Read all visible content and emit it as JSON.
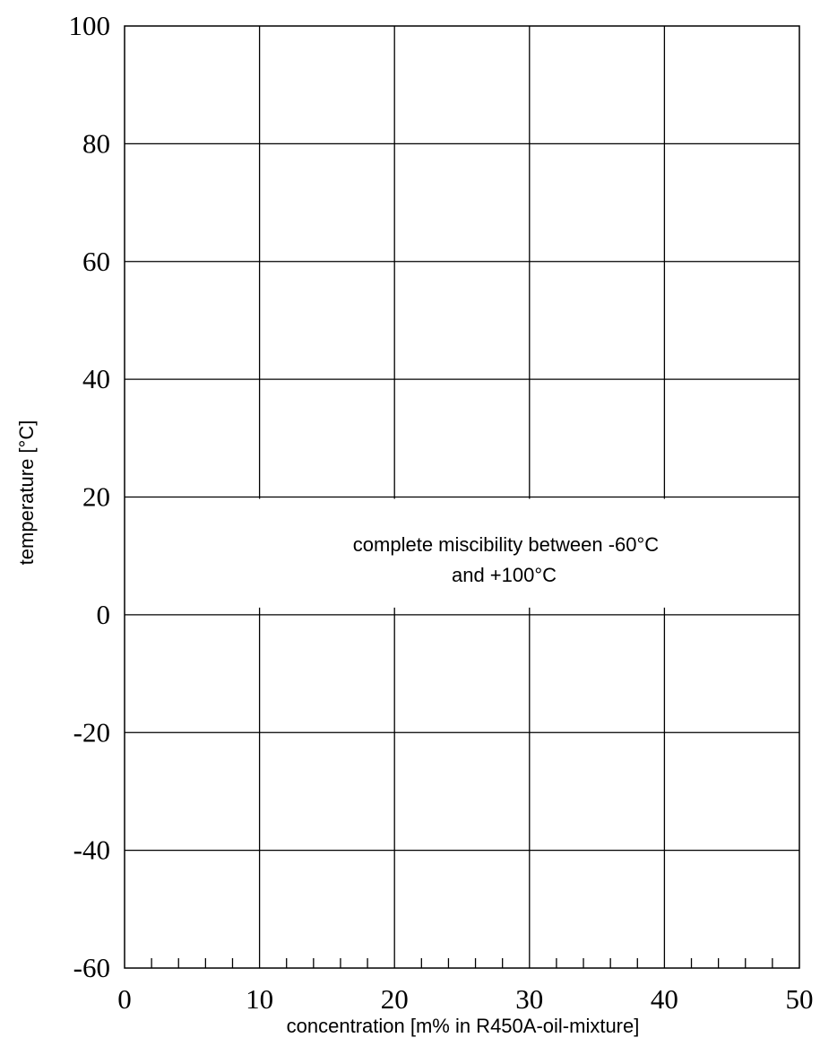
{
  "chart_data": {
    "type": "line",
    "title": "",
    "xlabel": "concentration [m% in R450A-oil-mixture]",
    "ylabel": "temperature [°C]",
    "xlim": [
      0,
      50
    ],
    "ylim": [
      -60,
      100
    ],
    "x_ticks": [
      0,
      10,
      20,
      30,
      40,
      50
    ],
    "y_ticks": [
      100,
      80,
      60,
      40,
      20,
      0,
      -20,
      -40,
      -60
    ],
    "x_minor_step": 2,
    "grid": true,
    "series": [],
    "annotation": {
      "lines": [
        "complete miscibility between -60°C",
        "and +100°C"
      ],
      "x": 25,
      "y": 10
    },
    "colors": {
      "line": "#000000",
      "background": "#ffffff"
    }
  }
}
